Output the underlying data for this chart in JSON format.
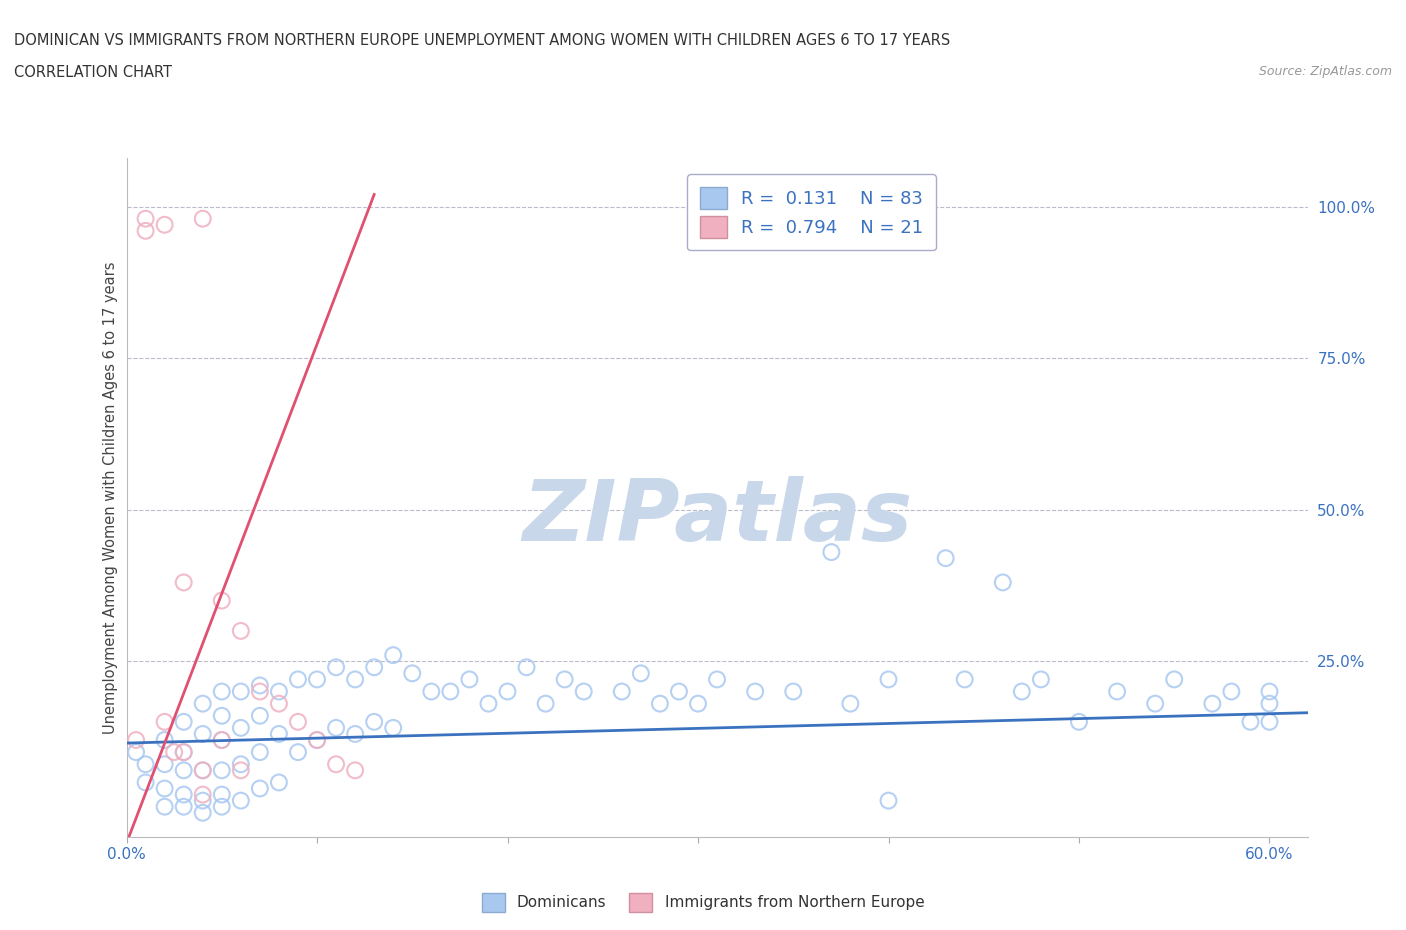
{
  "title_line1": "DOMINICAN VS IMMIGRANTS FROM NORTHERN EUROPE UNEMPLOYMENT AMONG WOMEN WITH CHILDREN AGES 6 TO 17 YEARS",
  "title_line2": "CORRELATION CHART",
  "source": "Source: ZipAtlas.com",
  "ylabel": "Unemployment Among Women with Children Ages 6 to 17 years",
  "xlim": [
    0.0,
    0.62
  ],
  "ylim": [
    -0.04,
    1.08
  ],
  "xtick_vals": [
    0.0,
    0.1,
    0.2,
    0.3,
    0.4,
    0.5,
    0.6
  ],
  "xtick_labels": [
    "0.0%",
    "",
    "",
    "",
    "",
    "",
    "60.0%"
  ],
  "ytick_right_vals": [
    0.0,
    0.25,
    0.5,
    0.75,
    1.0
  ],
  "ytick_right_labels": [
    "",
    "25.0%",
    "50.0%",
    "75.0%",
    "100.0%"
  ],
  "blue_color": "#A8C8F0",
  "pink_color": "#F0B0C0",
  "blue_line_color": "#3B72C0",
  "pink_line_color": "#E05070",
  "R_blue": 0.131,
  "N_blue": 83,
  "R_pink": 0.794,
  "N_pink": 21,
  "watermark": "ZIPatlas",
  "watermark_color": "#C8D8EA",
  "legend_label_blue": "Dominicans",
  "legend_label_pink": "Immigrants from Northern Europe",
  "blue_scatter_x": [
    0.005,
    0.01,
    0.01,
    0.02,
    0.02,
    0.02,
    0.02,
    0.03,
    0.03,
    0.03,
    0.03,
    0.03,
    0.04,
    0.04,
    0.04,
    0.04,
    0.04,
    0.05,
    0.05,
    0.05,
    0.05,
    0.05,
    0.05,
    0.06,
    0.06,
    0.06,
    0.06,
    0.07,
    0.07,
    0.07,
    0.07,
    0.08,
    0.08,
    0.08,
    0.09,
    0.09,
    0.1,
    0.1,
    0.11,
    0.11,
    0.12,
    0.12,
    0.13,
    0.13,
    0.14,
    0.14,
    0.15,
    0.16,
    0.17,
    0.18,
    0.19,
    0.2,
    0.21,
    0.22,
    0.23,
    0.24,
    0.26,
    0.27,
    0.28,
    0.29,
    0.3,
    0.31,
    0.33,
    0.35,
    0.37,
    0.38,
    0.4,
    0.4,
    0.43,
    0.44,
    0.46,
    0.47,
    0.48,
    0.5,
    0.52,
    0.54,
    0.55,
    0.57,
    0.58,
    0.59,
    0.6,
    0.6,
    0.6
  ],
  "blue_scatter_y": [
    0.1,
    0.08,
    0.05,
    0.12,
    0.08,
    0.04,
    0.01,
    0.15,
    0.1,
    0.07,
    0.03,
    0.01,
    0.18,
    0.13,
    0.07,
    0.02,
    0.0,
    0.2,
    0.16,
    0.12,
    0.07,
    0.03,
    0.01,
    0.2,
    0.14,
    0.08,
    0.02,
    0.21,
    0.16,
    0.1,
    0.04,
    0.2,
    0.13,
    0.05,
    0.22,
    0.1,
    0.22,
    0.12,
    0.24,
    0.14,
    0.22,
    0.13,
    0.24,
    0.15,
    0.26,
    0.14,
    0.23,
    0.2,
    0.2,
    0.22,
    0.18,
    0.2,
    0.24,
    0.18,
    0.22,
    0.2,
    0.2,
    0.23,
    0.18,
    0.2,
    0.18,
    0.22,
    0.2,
    0.2,
    0.43,
    0.18,
    0.22,
    0.02,
    0.42,
    0.22,
    0.38,
    0.2,
    0.22,
    0.15,
    0.2,
    0.18,
    0.22,
    0.18,
    0.2,
    0.15,
    0.2,
    0.15,
    0.18
  ],
  "pink_scatter_x": [
    0.005,
    0.01,
    0.01,
    0.02,
    0.02,
    0.025,
    0.03,
    0.03,
    0.04,
    0.04,
    0.04,
    0.05,
    0.05,
    0.06,
    0.06,
    0.07,
    0.08,
    0.09,
    0.1,
    0.11,
    0.12
  ],
  "pink_scatter_y": [
    0.12,
    0.98,
    0.96,
    0.97,
    0.15,
    0.1,
    0.38,
    0.1,
    0.98,
    0.07,
    0.03,
    0.35,
    0.12,
    0.3,
    0.07,
    0.2,
    0.18,
    0.15,
    0.12,
    0.08,
    0.07
  ],
  "blue_trend_x": [
    0.0,
    0.62
  ],
  "blue_trend_y": [
    0.115,
    0.165
  ],
  "pink_trend_x": [
    0.0,
    0.13
  ],
  "pink_trend_y": [
    -0.05,
    1.02
  ]
}
